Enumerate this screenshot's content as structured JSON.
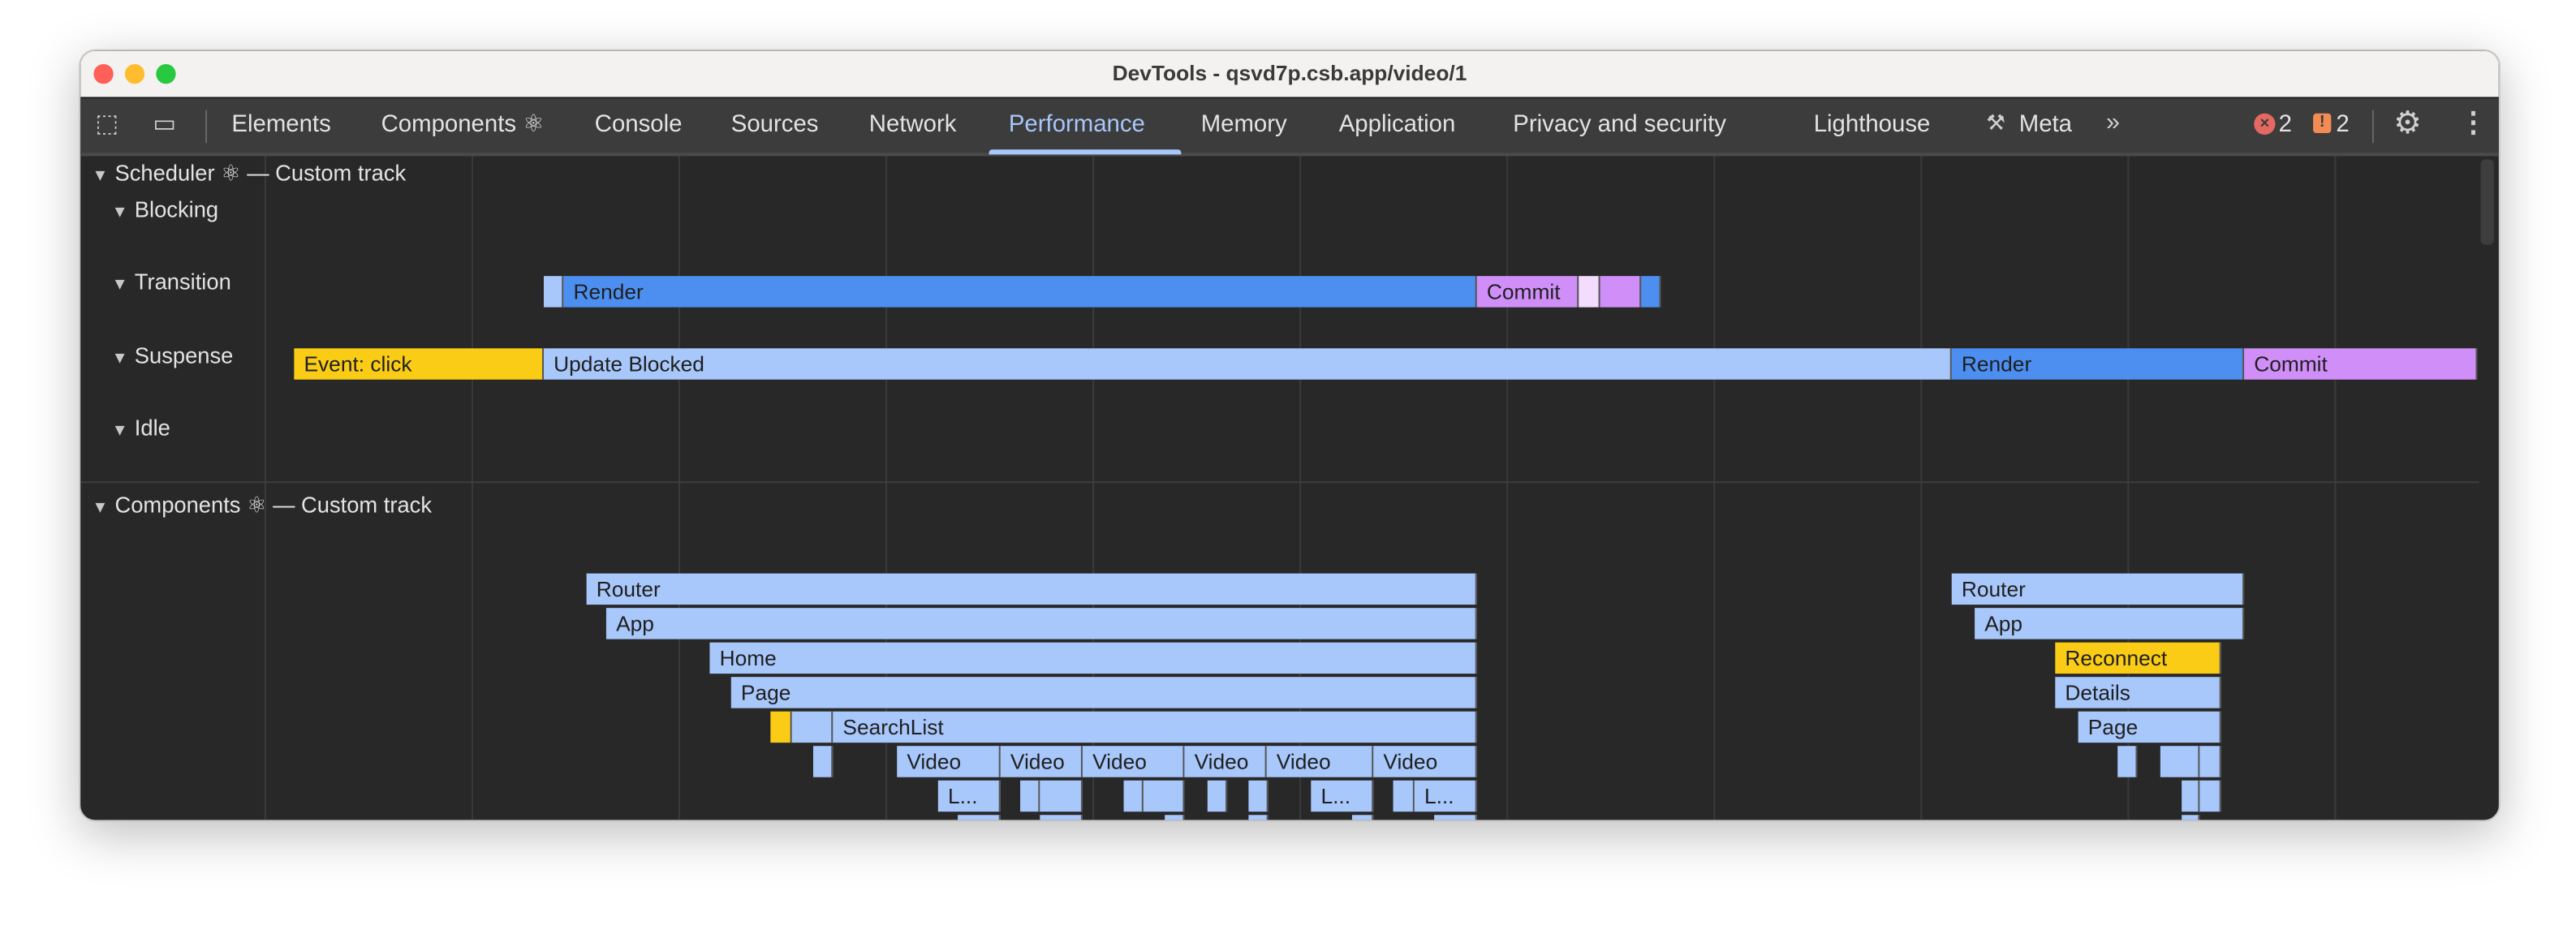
{
  "window": {
    "title": "DevTools - qsvd7p.csb.app/video/1"
  },
  "toolbar": {
    "tabs": [
      {
        "label": "Elements"
      },
      {
        "label": "Components ⚛"
      },
      {
        "label": "Console"
      },
      {
        "label": "Sources"
      },
      {
        "label": "Network"
      },
      {
        "label": "Performance",
        "active": true
      },
      {
        "label": "Memory"
      },
      {
        "label": "Application"
      },
      {
        "label": "Privacy and security"
      },
      {
        "label": "Lighthouse"
      },
      {
        "label": "Meta"
      }
    ],
    "errors_count": "2",
    "warnings_count": "2",
    "icons": [
      "inspect-element-icon",
      "device-toggle-icon",
      "meta-tools-icon",
      "more-tabs-icon",
      "error-icon",
      "warning-icon",
      "settings-icon",
      "more-options-icon"
    ]
  },
  "scheduler": {
    "header": "Scheduler ⚛ — Custom track",
    "lanes": [
      "Blocking",
      "Transition",
      "Suspense",
      "Idle"
    ],
    "blocking": {
      "render": "Render",
      "commit": "Commit"
    },
    "transition": {
      "event": "Event: click",
      "update": "Update Blocked",
      "render": "Render",
      "commit": "Commit"
    }
  },
  "components": {
    "header": "Components ⚛ — Custom track",
    "left": {
      "router": "Router",
      "app": "App",
      "home": "Home",
      "page": "Page",
      "searchlist": "SearchList",
      "video": "Video",
      "truncated": "L..."
    },
    "right": {
      "router": "Router",
      "app": "App",
      "reconnect": "Reconnect",
      "details": "Details",
      "page": "Page"
    }
  },
  "colors": {
    "render": "#4d8ff0",
    "commit": "#d08ff8",
    "component": "#a8c7fa",
    "event": "#facc15",
    "active_tab": "#a8c7fa"
  }
}
